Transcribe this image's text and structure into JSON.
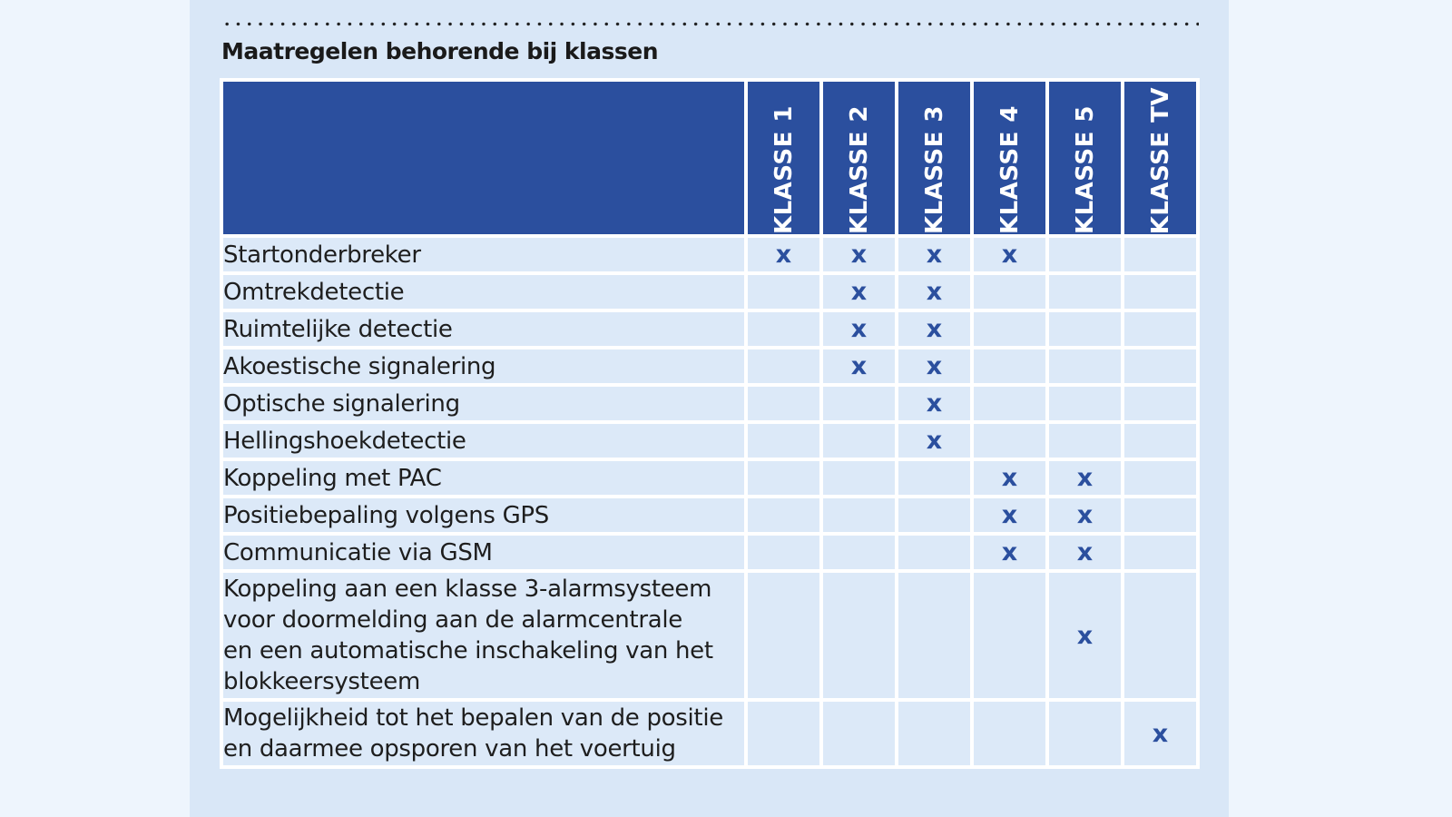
{
  "title": "Maatregelen behorende bij klassen",
  "columns": [
    "KLASSE 1",
    "KLASSE 2",
    "KLASSE 3",
    "KLASSE 4",
    "KLASSE 5",
    "KLASSE TV"
  ],
  "mark_symbol": "x",
  "rows": [
    {
      "label": "Startonderbreker",
      "marks": [
        true,
        true,
        true,
        true,
        false,
        false
      ]
    },
    {
      "label": "Omtrekdetectie",
      "marks": [
        false,
        true,
        true,
        false,
        false,
        false
      ]
    },
    {
      "label": "Ruimtelijke detectie",
      "marks": [
        false,
        true,
        true,
        false,
        false,
        false
      ]
    },
    {
      "label": "Akoestische signalering",
      "marks": [
        false,
        true,
        true,
        false,
        false,
        false
      ]
    },
    {
      "label": "Optische signalering",
      "marks": [
        false,
        false,
        true,
        false,
        false,
        false
      ]
    },
    {
      "label": "Hellingshoekdetectie",
      "marks": [
        false,
        false,
        true,
        false,
        false,
        false
      ]
    },
    {
      "label": "Koppeling met PAC",
      "marks": [
        false,
        false,
        false,
        true,
        true,
        false
      ]
    },
    {
      "label": "Positiebepaling volgens GPS",
      "marks": [
        false,
        false,
        false,
        true,
        true,
        false
      ]
    },
    {
      "label": "Communicatie via GSM",
      "marks": [
        false,
        false,
        false,
        true,
        true,
        false
      ]
    },
    {
      "label": "Koppeling aan een klasse 3-alarmsysteem voor doormelding aan de alarmcentrale en een automatische inschakeling van het blokkeersysteem",
      "lines": [
        "Koppeling aan een klasse 3-alarmsysteem",
        "voor doormelding aan de alarmcentrale",
        "en een automatische inschakeling van het",
        "blokkeersysteem"
      ],
      "marks": [
        false,
        false,
        false,
        false,
        true,
        false
      ]
    },
    {
      "label": "Mogelijkheid tot het bepalen van de positie en daarmee opsporen van het voertuig",
      "lines": [
        "Mogelijkheid tot het bepalen van de positie",
        "en daarmee opsporen van het voertuig"
      ],
      "marks": [
        false,
        false,
        false,
        false,
        false,
        true
      ]
    }
  ],
  "colors": {
    "header": "#2b4f9e",
    "cell": "#dce9f8",
    "panel": "#d9e7f7",
    "page": "#eef5fd",
    "mark": "#2b4f9e"
  }
}
